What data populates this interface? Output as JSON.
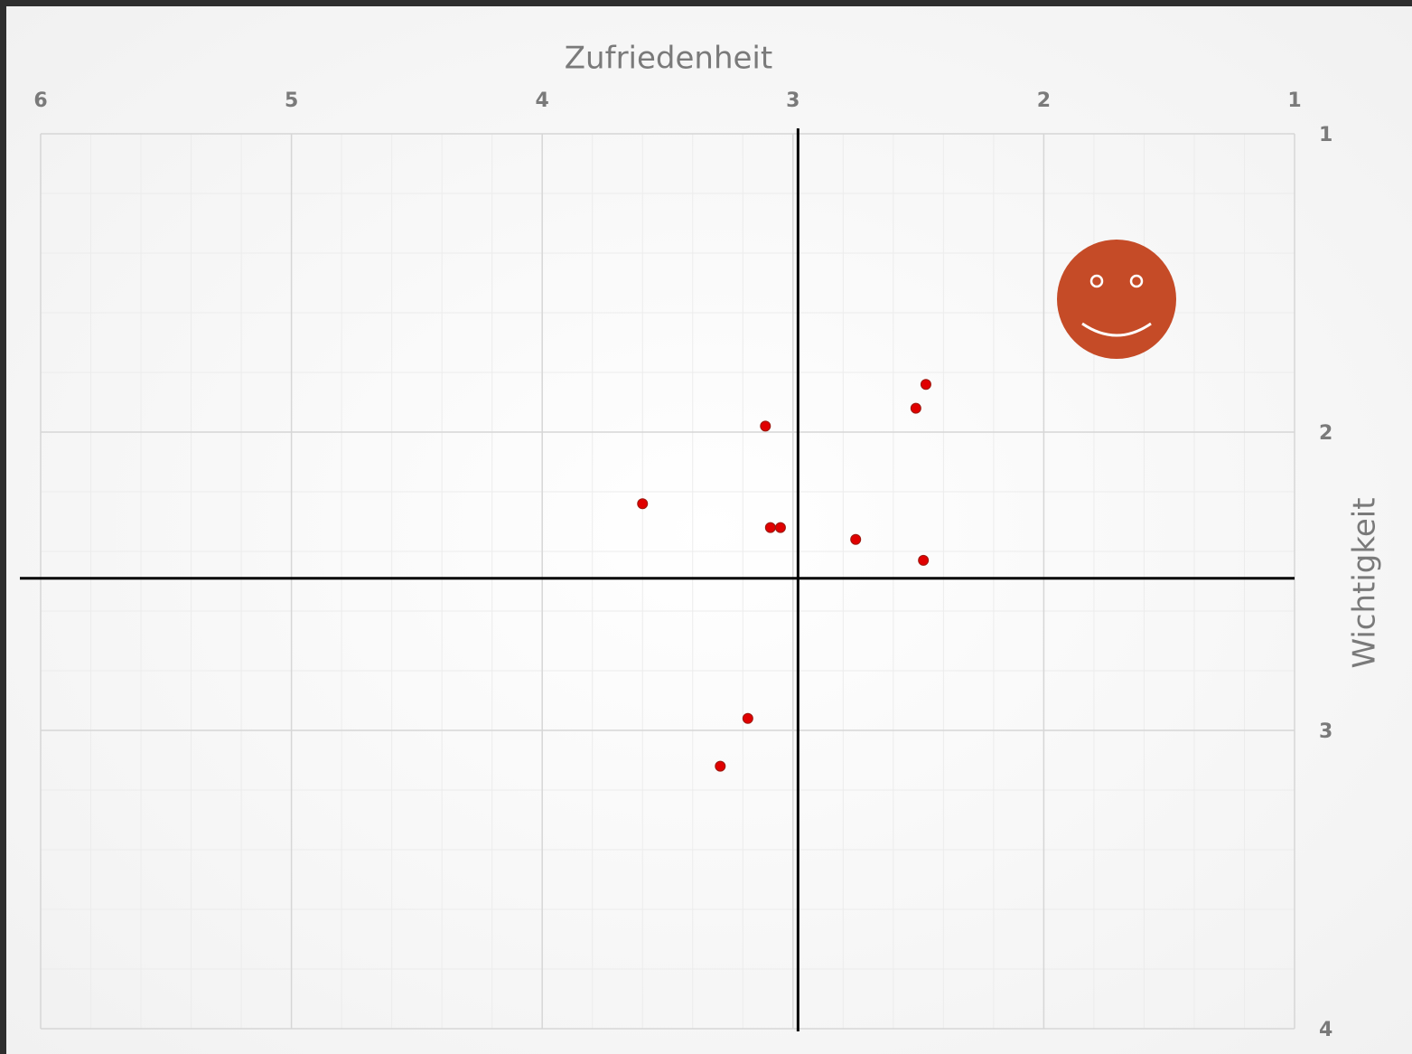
{
  "chart_data": {
    "type": "scatter",
    "x_label": "Zufriedenheit",
    "y_label": "Wichtigkeit",
    "series": [
      {
        "color": "#e00000",
        "x": [
          2.47,
          2.51,
          3.11,
          3.6,
          3.09,
          3.05,
          2.75,
          2.48,
          3.18,
          3.29
        ],
        "values": [
          1.84,
          1.92,
          1.98,
          2.24,
          2.32,
          2.32,
          2.36,
          2.43,
          2.96,
          3.12
        ]
      }
    ],
    "xlim": [
      6,
      1
    ],
    "xticks": [
      6,
      5,
      4,
      3,
      2,
      1
    ],
    "ylim": [
      1,
      4
    ],
    "yticks": [
      1,
      2,
      3,
      4
    ],
    "reference_lines": {
      "x": 2.98,
      "y": 2.49
    },
    "grid": true
  }
}
